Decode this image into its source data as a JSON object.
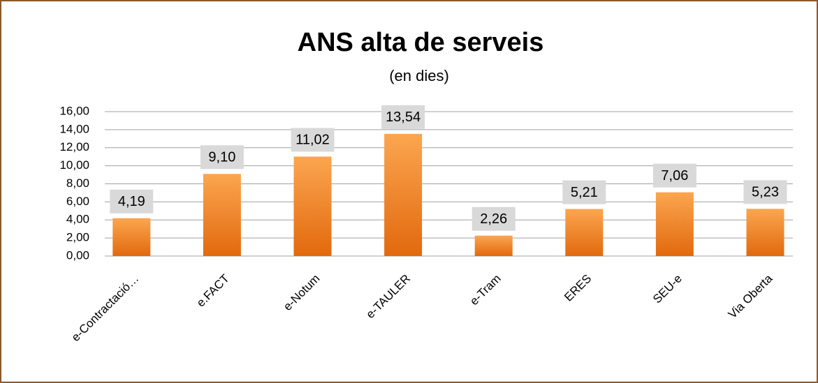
{
  "chart_data": {
    "type": "bar",
    "title": "ANS alta de serveis",
    "subtitle": "(en dies)",
    "categories": [
      "e-Contractació…",
      "e.FACT",
      "e-Notum",
      "e-TAULER",
      "e-Tram",
      "ERES",
      "SEU-e",
      "Via Oberta"
    ],
    "values": [
      4.19,
      9.1,
      11.02,
      13.54,
      2.26,
      5.21,
      7.06,
      5.23
    ],
    "value_labels": [
      "4,19",
      "9,10",
      "11,02",
      "13,54",
      "2,26",
      "5,21",
      "7,06",
      "5,23"
    ],
    "color": "#f08a24",
    "ylim": [
      0,
      16
    ],
    "yticks": [
      {
        "value": 0,
        "label": "0,00"
      },
      {
        "value": 2,
        "label": "2,00"
      },
      {
        "value": 4,
        "label": "4,00"
      },
      {
        "value": 6,
        "label": "6,00"
      },
      {
        "value": 8,
        "label": "8,00"
      },
      {
        "value": 10,
        "label": "10,00"
      },
      {
        "value": 12,
        "label": "12,00"
      },
      {
        "value": 14,
        "label": "14,00"
      },
      {
        "value": 16,
        "label": "16,00"
      }
    ],
    "grid": true
  }
}
